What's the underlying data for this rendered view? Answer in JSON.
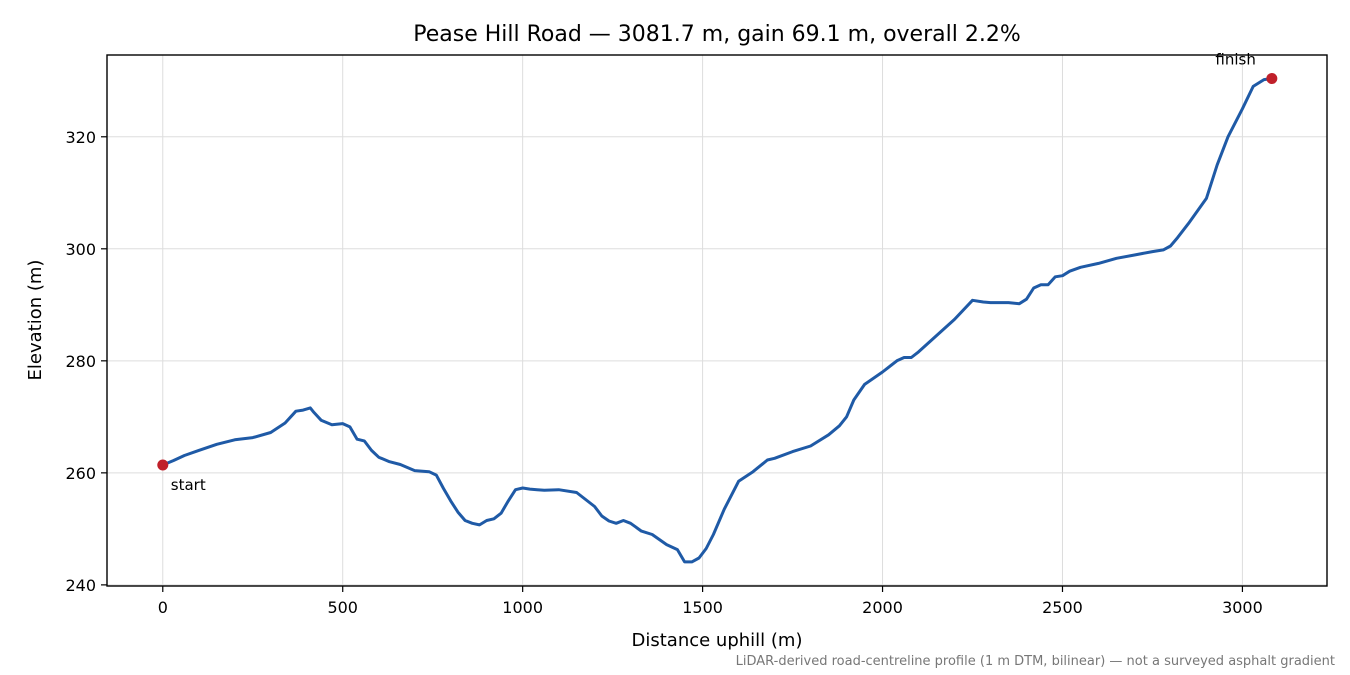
{
  "chart_data": {
    "type": "line",
    "title": "Pease Hill Road — 3081.7 m, gain 69.1 m, overall 2.2%",
    "xlabel": "Distance uphill (m)",
    "ylabel": "Elevation (m)",
    "xlim": [
      -155,
      3235
    ],
    "ylim": [
      239.8,
      334.6
    ],
    "xticks": [
      0,
      500,
      1000,
      1500,
      2000,
      2500,
      3000
    ],
    "yticks": [
      240,
      260,
      280,
      300,
      320
    ],
    "grid": true,
    "footnote": "LiDAR-derived road-centreline profile (1 m DTM, bilinear) — not a surveyed asphalt gradient",
    "line_color": "#1f5aa6",
    "marker_color": "#c0202a",
    "series": [
      {
        "x": [
          0,
          30,
          60,
          100,
          150,
          200,
          250,
          300,
          340,
          370,
          390,
          410,
          420,
          440,
          470,
          500,
          520,
          540,
          560,
          580,
          600,
          630,
          660,
          700,
          740,
          760,
          780,
          800,
          820,
          840,
          860,
          880,
          900,
          920,
          940,
          960,
          980,
          1000,
          1020,
          1040,
          1060,
          1100,
          1150,
          1200,
          1220,
          1240,
          1260,
          1280,
          1300,
          1330,
          1360,
          1400,
          1430,
          1450,
          1470,
          1490,
          1510,
          1530,
          1560,
          1600,
          1640,
          1680,
          1700,
          1750,
          1800,
          1850,
          1880,
          1900,
          1920,
          1950,
          2000,
          2040,
          2060,
          2080,
          2100,
          2150,
          2200,
          2250,
          2280,
          2300,
          2350,
          2380,
          2400,
          2420,
          2440,
          2460,
          2480,
          2500,
          2520,
          2550,
          2600,
          2650,
          2700,
          2750,
          2780,
          2800,
          2820,
          2850,
          2900,
          2930,
          2960,
          3000,
          3030,
          3060,
          3081.7
        ],
        "y": [
          261.4,
          262.2,
          263.1,
          264.0,
          265.1,
          265.9,
          266.3,
          267.2,
          268.9,
          271.0,
          271.2,
          271.6,
          270.8,
          269.4,
          268.6,
          268.8,
          268.2,
          266.0,
          265.7,
          264.0,
          262.8,
          262.0,
          261.5,
          260.4,
          260.2,
          259.6,
          257.2,
          255.0,
          253.0,
          251.5,
          251.0,
          250.7,
          251.5,
          251.8,
          252.8,
          255.0,
          257.0,
          257.3,
          257.1,
          257.0,
          256.9,
          257.0,
          256.5,
          254.0,
          252.3,
          251.4,
          251.0,
          251.5,
          251.0,
          249.6,
          249.0,
          247.2,
          246.3,
          244.1,
          244.1,
          244.8,
          246.5,
          249.0,
          253.5,
          258.5,
          260.2,
          262.3,
          262.6,
          263.8,
          264.8,
          266.8,
          268.4,
          270.0,
          273.0,
          275.8,
          278.0,
          280.0,
          280.6,
          280.6,
          281.6,
          284.5,
          287.4,
          290.8,
          290.5,
          290.4,
          290.4,
          290.2,
          291.0,
          293.0,
          293.6,
          293.6,
          295.0,
          295.2,
          296.0,
          296.7,
          297.4,
          298.3,
          298.9,
          299.5,
          299.8,
          300.5,
          302.0,
          304.5,
          309.0,
          315.0,
          320.0,
          325.0,
          329.0,
          330.2,
          330.4
        ]
      }
    ],
    "annotations": [
      {
        "text": "start",
        "x": 0,
        "y": 261.4
      },
      {
        "text": "finish",
        "x": 3081.7,
        "y": 330.4
      }
    ]
  }
}
